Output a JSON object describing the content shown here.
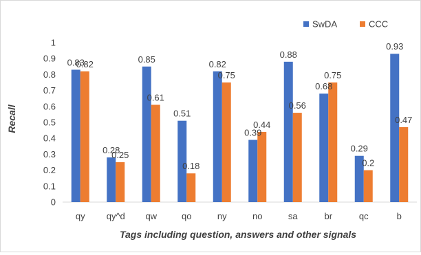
{
  "chart_data": {
    "type": "bar",
    "title": "",
    "xlabel": "Tags including question, answers and other signals",
    "ylabel": "Recall",
    "categories": [
      "qy",
      "qy^d",
      "qw",
      "qo",
      "ny",
      "no",
      "sa",
      "br",
      "qc",
      "b"
    ],
    "ylim": [
      0,
      1
    ],
    "yticks": [
      0,
      0.1,
      0.2,
      0.3,
      0.4,
      0.5,
      0.6,
      0.7,
      0.8,
      0.9,
      1
    ],
    "ytick_labels": [
      "0",
      "0.1",
      "0.2",
      "0.3",
      "0.4",
      "0.5",
      "0.6",
      "0.7",
      "0.8",
      "0.9",
      "1"
    ],
    "grid": false,
    "legend_position": "top-right",
    "series": [
      {
        "name": "SwDA",
        "color": "#4472c4",
        "values": [
          0.83,
          0.28,
          0.85,
          0.51,
          0.82,
          0.39,
          0.88,
          0.68,
          0.29,
          0.93
        ],
        "labels": [
          "0.83",
          "0.28",
          "0.85",
          "0.51",
          "0.82",
          "0.39",
          "0.88",
          "0.68",
          "0.29",
          "0.93"
        ]
      },
      {
        "name": "CCC",
        "color": "#ed7d31",
        "values": [
          0.82,
          0.25,
          0.61,
          0.18,
          0.75,
          0.44,
          0.56,
          0.75,
          0.2,
          0.47
        ],
        "labels": [
          "0.82",
          "0.25",
          "0.61",
          "0.18",
          "0.75",
          "0.44",
          "0.56",
          "0.75",
          "0.2",
          "0.47"
        ]
      }
    ]
  }
}
